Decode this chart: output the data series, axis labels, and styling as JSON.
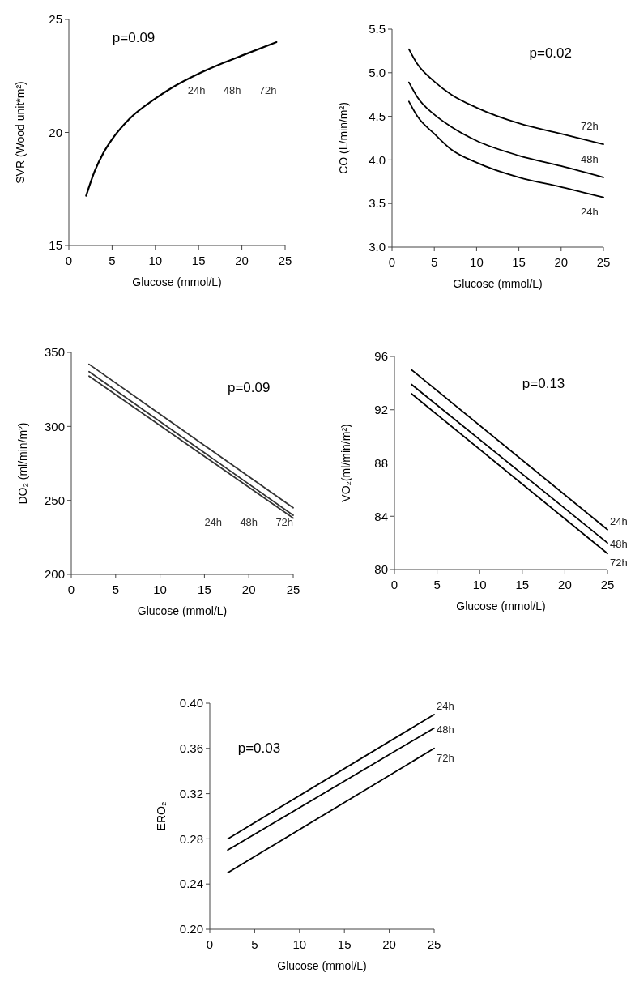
{
  "chart_data": [
    {
      "type": "line",
      "xlabel": "Glucose (mmol/L)",
      "ylabel": "SVR (Wood unit*m²)",
      "xlim": [
        0,
        25
      ],
      "ylim": [
        15,
        25
      ],
      "xticks": [
        0,
        5,
        10,
        15,
        20,
        25
      ],
      "yticks": [
        15,
        20,
        25
      ],
      "annotations": [
        "p=0.09",
        "24h",
        "48h",
        "72h"
      ],
      "x": [
        2,
        3,
        4,
        5,
        7,
        10,
        12,
        15,
        18,
        20,
        24
      ],
      "series": [
        {
          "color": "#000000",
          "values": [
            17.2,
            18.3,
            19.1,
            19.7,
            20.6,
            21.5,
            22.0,
            22.6,
            23.1,
            23.4,
            24.0
          ]
        }
      ]
    },
    {
      "type": "line",
      "xlabel": "Glucose (mmol/L)",
      "ylabel": "CO (L/min/m²)",
      "xlim": [
        0,
        25
      ],
      "ylim": [
        3.0,
        5.5
      ],
      "xticks": [
        0,
        5,
        10,
        15,
        20,
        25
      ],
      "yticks": [
        {
          "value": 3,
          "label": "3.0"
        },
        {
          "value": 3.5,
          "label": "3.5"
        },
        {
          "value": 4,
          "label": "4.0"
        },
        {
          "value": 4.5,
          "label": "4.5"
        },
        {
          "value": 5,
          "label": "5.0"
        },
        {
          "value": 5.5,
          "label": "5.5"
        }
      ],
      "annotations": [
        "p=0.02"
      ],
      "x": [
        2,
        3,
        5,
        7,
        10,
        15,
        20,
        25
      ],
      "series": [
        {
          "name": "72h",
          "color": "#000000",
          "values": [
            5.27,
            5.1,
            4.9,
            4.75,
            4.6,
            4.42,
            4.3,
            4.18
          ]
        },
        {
          "name": "48h",
          "color": "#000000",
          "values": [
            4.89,
            4.72,
            4.52,
            4.38,
            4.22,
            4.05,
            3.93,
            3.8
          ]
        },
        {
          "name": "24h",
          "color": "#000000",
          "values": [
            4.67,
            4.5,
            4.3,
            4.12,
            3.97,
            3.8,
            3.69,
            3.57
          ]
        }
      ]
    },
    {
      "type": "line",
      "xlabel": "Glucose (mmol/L)",
      "ylabel": "DO₂ (ml/min/m²)",
      "xlim": [
        0,
        25
      ],
      "ylim": [
        200,
        350
      ],
      "xticks": [
        0,
        5,
        10,
        15,
        20,
        25
      ],
      "yticks": [
        200,
        250,
        300,
        350
      ],
      "annotations": [
        "p=0.09",
        "24h",
        "48h",
        "72h"
      ],
      "x": [
        2,
        25
      ],
      "series": [
        {
          "color": "#333333",
          "values": [
            342,
            245
          ]
        },
        {
          "color": "#333333",
          "values": [
            337,
            240
          ]
        },
        {
          "color": "#333333",
          "values": [
            334,
            238
          ]
        }
      ]
    },
    {
      "type": "line",
      "xlabel": "Glucose (mmol/L)",
      "ylabel": "VO₂(ml/min/m²)",
      "xlim": [
        0,
        25
      ],
      "ylim": [
        80,
        96
      ],
      "xticks": [
        0,
        5,
        10,
        15,
        20,
        25
      ],
      "yticks": [
        80,
        84,
        88,
        92,
        96
      ],
      "annotations": [
        "p=0.13"
      ],
      "x": [
        2,
        25
      ],
      "series": [
        {
          "name": "24h",
          "color": "#000000",
          "values": [
            95,
            83
          ]
        },
        {
          "name": "48h",
          "color": "#000000",
          "values": [
            93.9,
            82
          ]
        },
        {
          "name": "72h",
          "color": "#000000",
          "values": [
            93.2,
            81.2
          ]
        }
      ]
    },
    {
      "type": "line",
      "xlabel": "Glucose (mmol/L)",
      "ylabel": "ERO₂",
      "xlim": [
        0,
        25
      ],
      "ylim": [
        0.2,
        0.4
      ],
      "xticks": [
        0,
        5,
        10,
        15,
        20,
        25
      ],
      "yticks": [
        {
          "value": 0.2,
          "label": "0.20"
        },
        {
          "value": 0.24,
          "label": "0.24"
        },
        {
          "value": 0.28,
          "label": "0.28"
        },
        {
          "value": 0.32,
          "label": "0.32"
        },
        {
          "value": 0.36,
          "label": "0.36"
        },
        {
          "value": 0.4,
          "label": "0.40"
        }
      ],
      "annotations": [
        "p=0.03"
      ],
      "x": [
        2,
        25
      ],
      "series": [
        {
          "name": "24h",
          "color": "#000000",
          "values": [
            0.28,
            0.39
          ]
        },
        {
          "name": "48h",
          "color": "#000000",
          "values": [
            0.27,
            0.378
          ]
        },
        {
          "name": "72h",
          "color": "#000000",
          "values": [
            0.25,
            0.36
          ]
        }
      ]
    }
  ]
}
